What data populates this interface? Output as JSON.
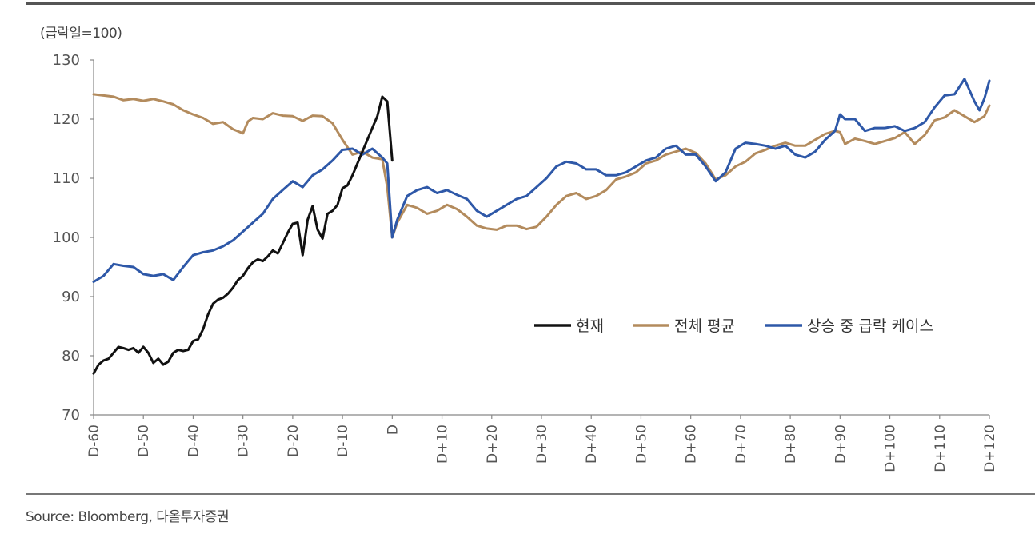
{
  "unit_label": "(급락일=100)",
  "source": "Source: Bloomberg, 다올투자증권",
  "chart_data": {
    "type": "line",
    "title": "",
    "xlabel": "",
    "ylabel": "(급락일=100)",
    "ylim": [
      70,
      130
    ],
    "yticks": [
      70,
      80,
      90,
      100,
      110,
      120,
      130
    ],
    "xlim": [
      -60,
      120
    ],
    "xticks": [
      {
        "x": -60,
        "label": "D-60"
      },
      {
        "x": -50,
        "label": "D-50"
      },
      {
        "x": -40,
        "label": "D-40"
      },
      {
        "x": -30,
        "label": "D-30"
      },
      {
        "x": -20,
        "label": "D-20"
      },
      {
        "x": -10,
        "label": "D-10"
      },
      {
        "x": 0,
        "label": "D"
      },
      {
        "x": 10,
        "label": "D+10"
      },
      {
        "x": 20,
        "label": "D+20"
      },
      {
        "x": 30,
        "label": "D+30"
      },
      {
        "x": 40,
        "label": "D+40"
      },
      {
        "x": 50,
        "label": "D+50"
      },
      {
        "x": 60,
        "label": "D+60"
      },
      {
        "x": 70,
        "label": "D+70"
      },
      {
        "x": 80,
        "label": "D+80"
      },
      {
        "x": 90,
        "label": "D+90"
      },
      {
        "x": 100,
        "label": "D+100"
      },
      {
        "x": 110,
        "label": "D+110"
      },
      {
        "x": 120,
        "label": "D+120"
      }
    ],
    "grid": false,
    "legend_position": "right-middle",
    "series": [
      {
        "name": "현재",
        "color": "#111111",
        "points": [
          [
            -60,
            77
          ],
          [
            -59,
            78.5
          ],
          [
            -58,
            79.2
          ],
          [
            -57,
            79.5
          ],
          [
            -56,
            80.5
          ],
          [
            -55,
            81.5
          ],
          [
            -54,
            81.3
          ],
          [
            -53,
            81
          ],
          [
            -52,
            81.3
          ],
          [
            -51,
            80.5
          ],
          [
            -50,
            81.5
          ],
          [
            -49,
            80.5
          ],
          [
            -48,
            78.8
          ],
          [
            -47,
            79.5
          ],
          [
            -46,
            78.5
          ],
          [
            -45,
            79
          ],
          [
            -44,
            80.5
          ],
          [
            -43,
            81
          ],
          [
            -42,
            80.8
          ],
          [
            -41,
            81
          ],
          [
            -40,
            82.5
          ],
          [
            -39,
            82.8
          ],
          [
            -38,
            84.5
          ],
          [
            -37,
            87
          ],
          [
            -36,
            88.8
          ],
          [
            -35,
            89.5
          ],
          [
            -34,
            89.8
          ],
          [
            -33,
            90.5
          ],
          [
            -32,
            91.5
          ],
          [
            -31,
            92.8
          ],
          [
            -30,
            93.5
          ],
          [
            -29,
            94.8
          ],
          [
            -28,
            95.8
          ],
          [
            -27,
            96.3
          ],
          [
            -26,
            96
          ],
          [
            -25,
            96.8
          ],
          [
            -24,
            97.8
          ],
          [
            -23,
            97.3
          ],
          [
            -22,
            99
          ],
          [
            -21,
            100.8
          ],
          [
            -20,
            102.3
          ],
          [
            -19,
            102.5
          ],
          [
            -18,
            97
          ],
          [
            -17,
            103
          ],
          [
            -16,
            105.3
          ],
          [
            -15,
            101.3
          ],
          [
            -14,
            99.8
          ],
          [
            -13,
            104
          ],
          [
            -12,
            104.5
          ],
          [
            -11,
            105.5
          ],
          [
            -10,
            108.3
          ],
          [
            -9,
            108.8
          ],
          [
            -8,
            110.5
          ],
          [
            -7,
            112.5
          ],
          [
            -6,
            114.5
          ],
          [
            -5,
            116.5
          ],
          [
            -4,
            118.5
          ],
          [
            -3,
            120.5
          ],
          [
            -2,
            123.8
          ],
          [
            -1,
            123
          ],
          [
            0,
            113
          ]
        ]
      },
      {
        "name": "전체 평균",
        "color": "#b38b5d",
        "points": [
          [
            -60,
            124.2
          ],
          [
            -58,
            124
          ],
          [
            -56,
            123.8
          ],
          [
            -54,
            123.2
          ],
          [
            -52,
            123.4
          ],
          [
            -50,
            123.1
          ],
          [
            -48,
            123.4
          ],
          [
            -46,
            123
          ],
          [
            -44,
            122.5
          ],
          [
            -42,
            121.5
          ],
          [
            -40,
            120.8
          ],
          [
            -38,
            120.2
          ],
          [
            -36,
            119.2
          ],
          [
            -34,
            119.5
          ],
          [
            -32,
            118.3
          ],
          [
            -30,
            117.6
          ],
          [
            -29,
            119.6
          ],
          [
            -28,
            120.2
          ],
          [
            -26,
            120
          ],
          [
            -24,
            121
          ],
          [
            -22,
            120.6
          ],
          [
            -20,
            120.5
          ],
          [
            -18,
            119.7
          ],
          [
            -16,
            120.6
          ],
          [
            -14,
            120.5
          ],
          [
            -12,
            119.3
          ],
          [
            -10,
            116.5
          ],
          [
            -8,
            114
          ],
          [
            -6,
            114.5
          ],
          [
            -4,
            113.5
          ],
          [
            -2,
            113.2
          ],
          [
            -1,
            108.5
          ],
          [
            0,
            100
          ],
          [
            1,
            102.5
          ],
          [
            3,
            105.5
          ],
          [
            5,
            105
          ],
          [
            7,
            104
          ],
          [
            9,
            104.5
          ],
          [
            11,
            105.5
          ],
          [
            13,
            104.8
          ],
          [
            15,
            103.5
          ],
          [
            17,
            102
          ],
          [
            19,
            101.5
          ],
          [
            21,
            101.3
          ],
          [
            23,
            102
          ],
          [
            25,
            102
          ],
          [
            27,
            101.4
          ],
          [
            29,
            101.8
          ],
          [
            31,
            103.5
          ],
          [
            33,
            105.5
          ],
          [
            35,
            107
          ],
          [
            37,
            107.5
          ],
          [
            39,
            106.5
          ],
          [
            41,
            107
          ],
          [
            43,
            108
          ],
          [
            45,
            109.8
          ],
          [
            47,
            110.3
          ],
          [
            49,
            111
          ],
          [
            51,
            112.5
          ],
          [
            53,
            113
          ],
          [
            55,
            114
          ],
          [
            57,
            114.5
          ],
          [
            59,
            115
          ],
          [
            61,
            114.3
          ],
          [
            63,
            112.5
          ],
          [
            65,
            109.8
          ],
          [
            67,
            110.5
          ],
          [
            69,
            112
          ],
          [
            71,
            112.8
          ],
          [
            73,
            114.2
          ],
          [
            75,
            114.8
          ],
          [
            77,
            115.5
          ],
          [
            79,
            116
          ],
          [
            81,
            115.5
          ],
          [
            83,
            115.5
          ],
          [
            85,
            116.5
          ],
          [
            87,
            117.5
          ],
          [
            89,
            118
          ],
          [
            90,
            117.8
          ],
          [
            91,
            115.8
          ],
          [
            93,
            116.7
          ],
          [
            95,
            116.3
          ],
          [
            97,
            115.8
          ],
          [
            99,
            116.3
          ],
          [
            101,
            116.8
          ],
          [
            103,
            117.8
          ],
          [
            105,
            115.8
          ],
          [
            107,
            117.3
          ],
          [
            109,
            119.8
          ],
          [
            111,
            120.3
          ],
          [
            113,
            121.5
          ],
          [
            115,
            120.5
          ],
          [
            117,
            119.5
          ],
          [
            119,
            120.5
          ],
          [
            120,
            122.3
          ]
        ]
      },
      {
        "name": "상승 중 급락 케이스",
        "color": "#2e58a8",
        "points": [
          [
            -60,
            92.5
          ],
          [
            -58,
            93.5
          ],
          [
            -56,
            95.5
          ],
          [
            -54,
            95.2
          ],
          [
            -52,
            95
          ],
          [
            -50,
            93.8
          ],
          [
            -48,
            93.5
          ],
          [
            -46,
            93.8
          ],
          [
            -44,
            92.8
          ],
          [
            -42,
            95
          ],
          [
            -40,
            97
          ],
          [
            -38,
            97.5
          ],
          [
            -36,
            97.8
          ],
          [
            -34,
            98.5
          ],
          [
            -32,
            99.5
          ],
          [
            -30,
            101
          ],
          [
            -28,
            102.5
          ],
          [
            -26,
            104
          ],
          [
            -24,
            106.5
          ],
          [
            -22,
            108
          ],
          [
            -20,
            109.5
          ],
          [
            -18,
            108.5
          ],
          [
            -16,
            110.5
          ],
          [
            -14,
            111.5
          ],
          [
            -12,
            113
          ],
          [
            -10,
            114.8
          ],
          [
            -8,
            115
          ],
          [
            -6,
            114
          ],
          [
            -4,
            115
          ],
          [
            -2,
            113.5
          ],
          [
            -1,
            112.5
          ],
          [
            0,
            100
          ],
          [
            1,
            103
          ],
          [
            3,
            107
          ],
          [
            5,
            108
          ],
          [
            7,
            108.5
          ],
          [
            9,
            107.5
          ],
          [
            11,
            108
          ],
          [
            13,
            107.2
          ],
          [
            15,
            106.5
          ],
          [
            17,
            104.5
          ],
          [
            19,
            103.5
          ],
          [
            21,
            104.5
          ],
          [
            23,
            105.5
          ],
          [
            25,
            106.5
          ],
          [
            27,
            107
          ],
          [
            29,
            108.5
          ],
          [
            31,
            110
          ],
          [
            33,
            112
          ],
          [
            35,
            112.8
          ],
          [
            37,
            112.5
          ],
          [
            39,
            111.5
          ],
          [
            41,
            111.5
          ],
          [
            43,
            110.5
          ],
          [
            45,
            110.5
          ],
          [
            47,
            111
          ],
          [
            49,
            112
          ],
          [
            51,
            113
          ],
          [
            53,
            113.5
          ],
          [
            55,
            115
          ],
          [
            57,
            115.5
          ],
          [
            59,
            114
          ],
          [
            61,
            114
          ],
          [
            63,
            112
          ],
          [
            65,
            109.5
          ],
          [
            67,
            111
          ],
          [
            69,
            115
          ],
          [
            71,
            116
          ],
          [
            73,
            115.8
          ],
          [
            75,
            115.5
          ],
          [
            77,
            115
          ],
          [
            79,
            115.5
          ],
          [
            81,
            114
          ],
          [
            83,
            113.5
          ],
          [
            85,
            114.5
          ],
          [
            87,
            116.5
          ],
          [
            89,
            118
          ],
          [
            90,
            120.8
          ],
          [
            91,
            120
          ],
          [
            93,
            120
          ],
          [
            95,
            118
          ],
          [
            97,
            118.5
          ],
          [
            99,
            118.5
          ],
          [
            101,
            118.8
          ],
          [
            103,
            118
          ],
          [
            105,
            118.5
          ],
          [
            107,
            119.5
          ],
          [
            109,
            122
          ],
          [
            111,
            124
          ],
          [
            113,
            124.2
          ],
          [
            115,
            126.8
          ],
          [
            117,
            123
          ],
          [
            118,
            121.5
          ],
          [
            119,
            123.5
          ],
          [
            120,
            126.5
          ]
        ]
      }
    ]
  }
}
